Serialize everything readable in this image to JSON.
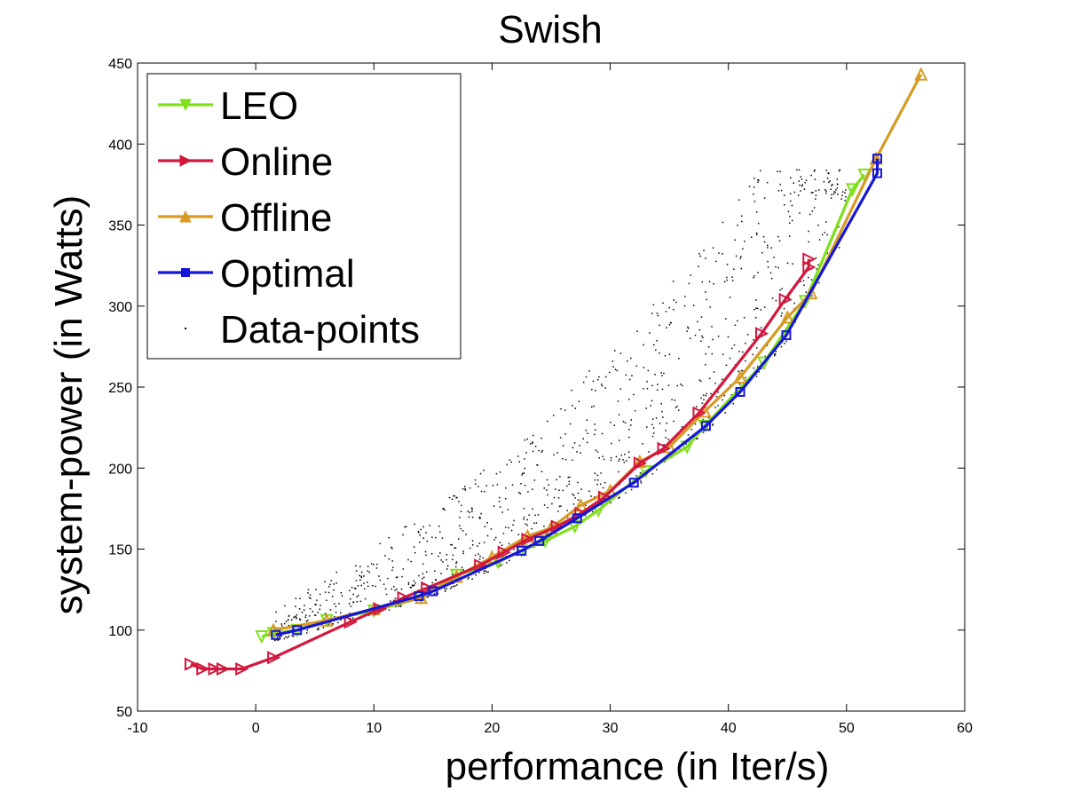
{
  "chart_data": {
    "type": "line",
    "title": "Swish",
    "xlabel": "performance (in Iter/s)",
    "ylabel": "system-power  (in Watts)",
    "xlim": [
      -10,
      60
    ],
    "ylim": [
      50,
      450
    ],
    "xticks": [
      -10,
      0,
      10,
      20,
      30,
      40,
      50,
      60
    ],
    "yticks": [
      50,
      100,
      150,
      200,
      250,
      300,
      350,
      400,
      450
    ],
    "grid": false,
    "legend_position": "top-left",
    "series": [
      {
        "name": "LEO",
        "color": "#7FE01A",
        "marker": "triangle-down",
        "x": [
          0.5,
          1.5,
          3.5,
          6,
          10,
          14,
          17,
          20.5,
          22.5,
          24.5,
          27,
          29,
          33,
          36.5,
          38,
          43,
          46.5,
          50.5,
          51.5
        ],
        "y": [
          96,
          98,
          100,
          106,
          112,
          120,
          134,
          142,
          149,
          155,
          164,
          174,
          198,
          213,
          226,
          265,
          303,
          372,
          381
        ]
      },
      {
        "name": "Online",
        "color": "#D2183D",
        "marker": "triangle-right",
        "x": [
          -5.5,
          -4.5,
          -3.5,
          -2.8,
          -1.2,
          1.5,
          8,
          10.5,
          12.5,
          14.5,
          19,
          21,
          23,
          25.5,
          27.5,
          29.5,
          32.5,
          34.5,
          37.5,
          42.8,
          44.8,
          46.8,
          46.8
        ],
        "y": [
          79,
          76,
          76,
          76,
          76,
          83,
          105,
          113,
          120,
          126,
          140,
          148,
          156,
          164,
          172,
          182,
          203,
          212,
          234,
          283,
          304,
          324,
          329
        ]
      },
      {
        "name": "Offline",
        "color": "#D69A25",
        "marker": "triangle-up",
        "x": [
          1.5,
          6,
          10,
          14,
          17,
          20,
          23,
          25,
          27.5,
          30,
          32.5,
          35,
          38,
          41,
          45,
          47,
          52.5,
          56.3
        ],
        "y": [
          100,
          106,
          113,
          120,
          133,
          145,
          158,
          163,
          177,
          186,
          204,
          213,
          235,
          256,
          293,
          308,
          391,
          443
        ]
      },
      {
        "name": "Optimal",
        "color": "#1616D8",
        "marker": "square",
        "x": [
          1.7,
          3.5,
          13.8,
          15,
          22.5,
          24,
          27.2,
          32,
          38.1,
          41,
          44.9,
          52.6,
          52.6
        ],
        "y": [
          97,
          100,
          121,
          124,
          149,
          155,
          169,
          191,
          226,
          247,
          282,
          382,
          391
        ]
      }
    ],
    "scatter": {
      "name": "Data-points",
      "color": "#000000",
      "count": 1100,
      "x_range": [
        1.5,
        50
      ],
      "y_range": [
        95,
        385
      ]
    }
  }
}
